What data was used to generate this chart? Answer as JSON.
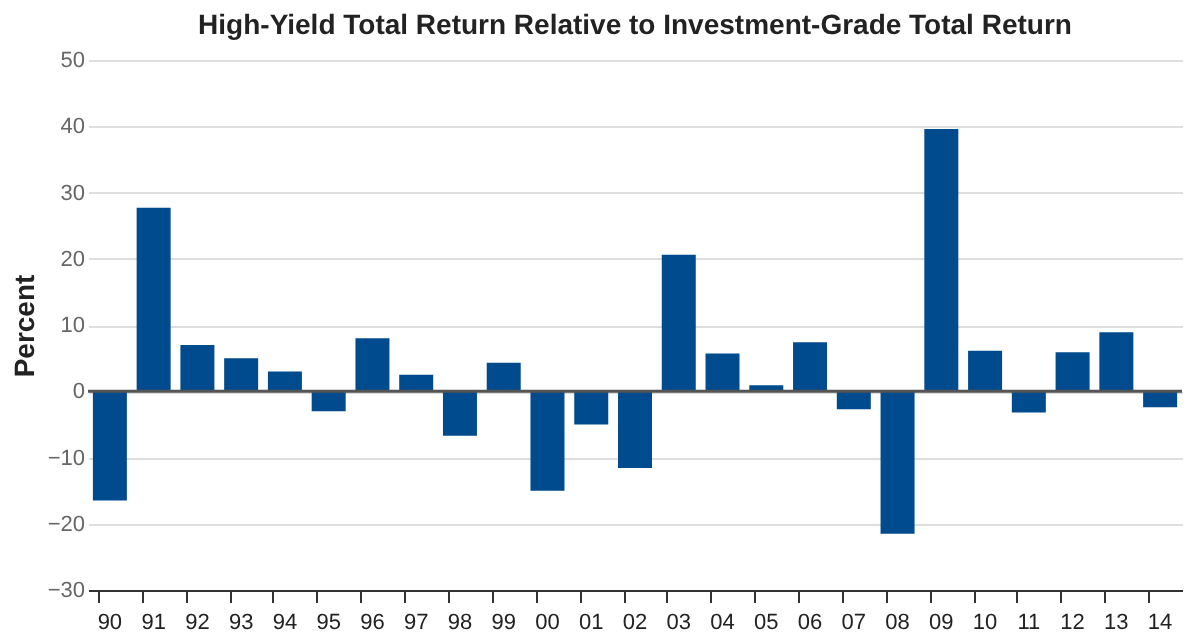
{
  "chart_data": {
    "type": "bar",
    "title": "High-Yield Total Return Relative to Investment-Grade Total Return",
    "ylabel": "Percent",
    "categories": [
      "90",
      "91",
      "92",
      "93",
      "94",
      "95",
      "96",
      "97",
      "98",
      "99",
      "00",
      "01",
      "02",
      "03",
      "04",
      "05",
      "06",
      "07",
      "08",
      "09",
      "10",
      "11",
      "12",
      "13",
      "14"
    ],
    "values": [
      -16.5,
      27.7,
      7,
      5,
      3,
      -3,
      8,
      2.5,
      -6.7,
      4.3,
      -15,
      -5,
      -11.6,
      20.6,
      5.7,
      0.9,
      7.4,
      -2.7,
      -21.5,
      39.6,
      6.1,
      -3.2,
      5.9,
      8.9,
      -2.4
    ],
    "color": "#004b8d",
    "ylim": [
      -30,
      50
    ],
    "yticks": [
      -30,
      -20,
      -10,
      0,
      10,
      20,
      30,
      40,
      50
    ],
    "grid": "y",
    "ref_lines": [
      {
        "axis": "y",
        "value": 0,
        "color": "#555555"
      }
    ]
  }
}
